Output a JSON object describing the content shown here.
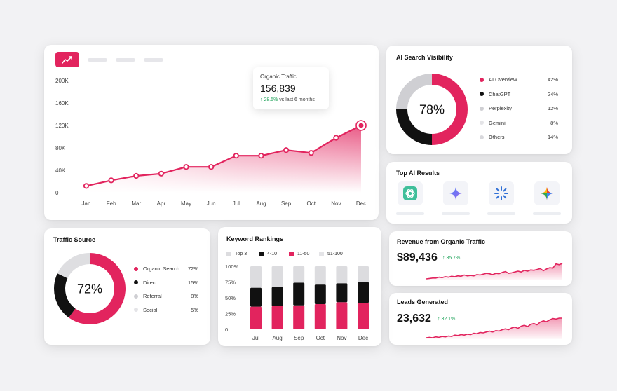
{
  "colors": {
    "accent": "#e2245e",
    "black": "#111111",
    "gray": "#cfcfd3",
    "light": "#e4e4e7",
    "green": "#1fa35a"
  },
  "main": {
    "badge_icon": "trending-chart-icon",
    "tooltip": {
      "label": "Organic Traffic",
      "value": "156,839",
      "delta": "↑ 28.5%",
      "delta_suffix": "vs last 6 months"
    }
  },
  "ai_visibility": {
    "title": "AI Search Visibility",
    "center_label": "78%",
    "legend": [
      {
        "name": "AI Overview",
        "pct": "42%",
        "color": "#e2245e"
      },
      {
        "name": "ChatGPT",
        "pct": "24%",
        "color": "#111111"
      },
      {
        "name": "Perplexity",
        "pct": "12%",
        "color": "#cfcfd3"
      },
      {
        "name": "Gemini",
        "pct": "8%",
        "color": "#e4e4e7"
      },
      {
        "name": "Others",
        "pct": "14%",
        "color": "#d8d8dc"
      }
    ]
  },
  "top_ai": {
    "title": "Top AI Results",
    "icons": [
      "chatgpt-icon",
      "gemini-icon",
      "perplexity-icon",
      "google-gemini-icon"
    ]
  },
  "revenue": {
    "title": "Revenue from Organic Traffic",
    "value": "$89,436",
    "delta": "↑ 35.7%"
  },
  "leads": {
    "title": "Leads Generated",
    "value": "23,632",
    "delta": "↑ 32.1%"
  },
  "traffic_source": {
    "title": "Traffic Source",
    "center_label": "72%",
    "legend": [
      {
        "name": "Organic Search",
        "pct": "72%",
        "color": "#e2245e"
      },
      {
        "name": "Direct",
        "pct": "15%",
        "color": "#111111"
      },
      {
        "name": "Referral",
        "pct": "8%",
        "color": "#cfcfd3"
      },
      {
        "name": "Social",
        "pct": "5%",
        "color": "#e4e4e7"
      }
    ]
  },
  "keywords": {
    "title": "Keyword Rankings",
    "legend": [
      {
        "name": "Top 3",
        "color": "#dcdcdf"
      },
      {
        "name": "4-10",
        "color": "#111111"
      },
      {
        "name": "11-50",
        "color": "#e2245e"
      },
      {
        "name": "51-100",
        "color": "#e4e4e7"
      }
    ]
  },
  "chart_data": [
    {
      "type": "area",
      "categories": [
        "Jan",
        "Feb",
        "Mar",
        "Apr",
        "May",
        "Jun",
        "Jul",
        "Aug",
        "Sep",
        "Oct",
        "Nov",
        "Dec"
      ],
      "series": [
        {
          "values": [
            12000,
            22000,
            30000,
            34000,
            46000,
            46000,
            66000,
            66000,
            76000,
            71000,
            98000,
            120000
          ]
        }
      ],
      "ytick_labels": [
        "200K",
        "160K",
        "120K",
        "80K",
        "40K",
        "0"
      ],
      "ylim": [
        0,
        200000
      ],
      "grid": false
    },
    {
      "type": "pie",
      "title": "AI Search Visibility",
      "labels": [
        "AI Overview",
        "ChatGPT",
        "Perplexity",
        "Gemini",
        "Others"
      ],
      "values": [
        42,
        24,
        12,
        8,
        14
      ],
      "ring": [
        {
          "label": "AI Overview",
          "value": 50,
          "color": "#e2245e"
        },
        {
          "label": "ChatGPT",
          "value": 25,
          "color": "#111111"
        },
        {
          "label": "Perplexity",
          "value": 25,
          "color": "#cfcfd3"
        }
      ]
    },
    {
      "type": "pie",
      "title": "Traffic Source",
      "labels": [
        "Organic Search",
        "Direct",
        "Referral",
        "Social"
      ],
      "values": [
        72,
        15,
        8,
        5
      ],
      "ring": [
        {
          "label": "Organic Search",
          "value": 60,
          "color": "#e2245e"
        },
        {
          "label": "Direct",
          "value": 22,
          "color": "#111111"
        },
        {
          "label": "Referral",
          "value": 18,
          "color": "#dedee1"
        }
      ]
    },
    {
      "type": "bar",
      "stacked": true,
      "title": "Keyword Rankings",
      "categories": [
        "Jul",
        "Aug",
        "Sep",
        "Oct",
        "Nov",
        "Dec"
      ],
      "series": [
        {
          "name": "11-50",
          "values": [
            36,
            37,
            38,
            40,
            43,
            42
          ]
        },
        {
          "name": "4-10",
          "values": [
            30,
            30,
            36,
            31,
            30,
            33
          ]
        },
        {
          "name": "Top 3",
          "values": [
            34,
            33,
            26,
            29,
            27,
            25
          ]
        }
      ],
      "ytick_labels": [
        "100%",
        "75%",
        "50%",
        "25%",
        "0"
      ],
      "ylim": [
        0,
        100
      ]
    },
    {
      "type": "line",
      "title": "Revenue from Organic Traffic",
      "values": [
        20,
        21,
        22,
        22,
        24,
        23,
        25,
        24,
        26,
        25,
        27,
        26,
        29,
        27,
        28,
        27,
        30,
        29,
        31,
        33,
        32,
        30,
        33,
        32,
        35,
        37,
        33,
        34,
        36,
        38,
        36,
        40,
        38,
        41,
        40,
        42,
        44,
        39,
        43,
        46,
        45,
        55,
        53,
        56
      ]
    },
    {
      "type": "line",
      "title": "Leads Generated",
      "values": [
        20,
        21,
        20,
        22,
        21,
        23,
        22,
        24,
        23,
        26,
        25,
        27,
        26,
        28,
        27,
        30,
        29,
        32,
        31,
        33,
        35,
        33,
        36,
        35,
        38,
        40,
        38,
        42,
        44,
        41,
        46,
        48,
        45,
        50,
        52,
        49,
        55,
        58,
        56,
        60,
        63,
        62,
        64,
        64
      ]
    }
  ]
}
